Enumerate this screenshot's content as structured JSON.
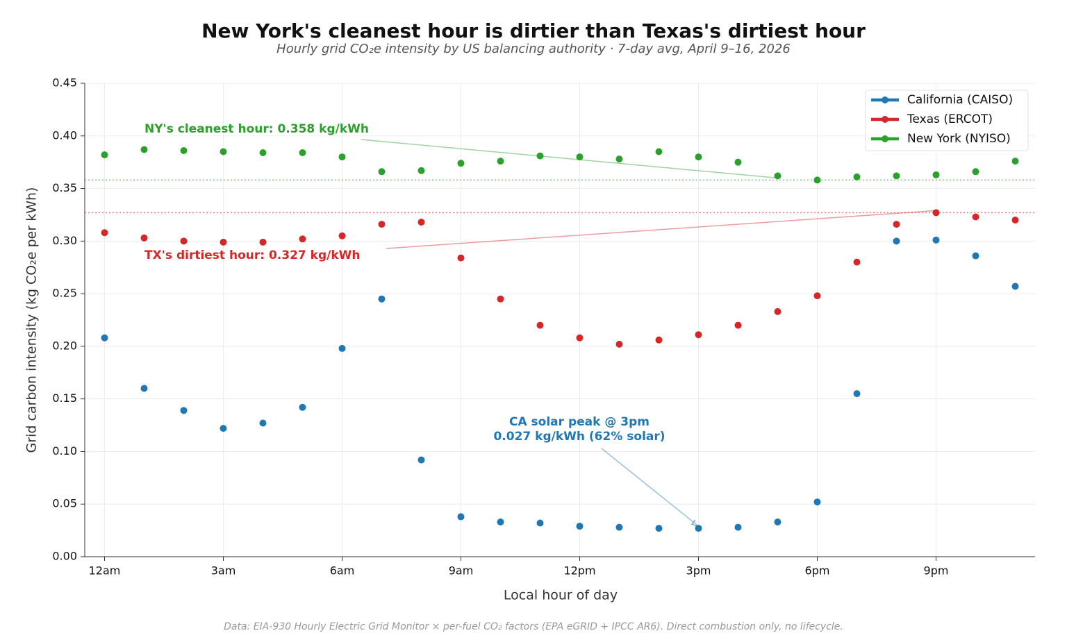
{
  "chart_data": {
    "type": "line",
    "title": "New York's cleanest hour is dirtier than Texas's dirtiest hour",
    "subtitle": "Hourly grid CO₂e intensity by US balancing authority · 7-day avg, April 9–16, 2026",
    "x_label": "Local hour of day",
    "y_label": "Grid carbon intensity (kg CO₂e per kWh)",
    "footnote": "Data: EIA-930 Hourly Electric Grid Monitor × per-fuel CO₂ factors (EPA eGRID + IPCC AR6). Direct combustion only, no lifecycle.",
    "x": [
      0,
      1,
      2,
      3,
      4,
      5,
      6,
      7,
      8,
      9,
      10,
      11,
      12,
      13,
      14,
      15,
      16,
      17,
      18,
      19,
      20,
      21,
      22,
      23
    ],
    "series": [
      {
        "name": "California (CAISO)",
        "color": "#1f77b4",
        "values": [
          0.208,
          0.16,
          0.139,
          0.122,
          0.127,
          0.142,
          0.198,
          0.245,
          0.092,
          0.038,
          0.033,
          0.032,
          0.029,
          0.028,
          0.027,
          0.027,
          0.028,
          0.033,
          0.052,
          0.155,
          0.3,
          0.301,
          0.286,
          0.257
        ]
      },
      {
        "name": "Texas (ERCOT)",
        "color": "#d62728",
        "values": [
          0.308,
          0.303,
          0.3,
          0.299,
          0.299,
          0.302,
          0.305,
          0.316,
          0.318,
          0.284,
          0.245,
          0.22,
          0.208,
          0.202,
          0.206,
          0.211,
          0.22,
          0.233,
          0.248,
          0.28,
          0.316,
          0.327,
          0.323,
          0.32
        ]
      },
      {
        "name": "New York (NYISO)",
        "color": "#2ca02c",
        "values": [
          0.382,
          0.387,
          0.386,
          0.385,
          0.384,
          0.384,
          0.38,
          0.366,
          0.367,
          0.374,
          0.376,
          0.381,
          0.38,
          0.378,
          0.385,
          0.38,
          0.375,
          0.362,
          0.358,
          0.361,
          0.362,
          0.363,
          0.366,
          0.376
        ]
      }
    ],
    "reference_lines": [
      {
        "value": 0.358,
        "color": "#2ca02c"
      },
      {
        "value": 0.327,
        "color": "#d62728"
      }
    ],
    "annotations": [
      {
        "lines": [
          "NY's cleanest hour: 0.358 kg/kWh"
        ],
        "color": "#2ca02c",
        "xy": [
          17,
          0.358
        ]
      },
      {
        "lines": [
          "TX's dirtiest hour: 0.327 kg/kWh"
        ],
        "color": "#d62728",
        "xy": [
          21,
          0.327
        ]
      },
      {
        "lines": [
          "CA solar peak @ 3pm",
          "0.027 kg/kWh (62% solar)"
        ],
        "color": "#1f77b4",
        "xy": [
          15,
          0.027
        ]
      }
    ],
    "xlim": [
      -0.5,
      23.5
    ],
    "ylim": [
      0,
      0.45
    ],
    "xticks": [
      {
        "value": 0,
        "label": "12am"
      },
      {
        "value": 3,
        "label": "3am"
      },
      {
        "value": 6,
        "label": "6am"
      },
      {
        "value": 9,
        "label": "9am"
      },
      {
        "value": 12,
        "label": "12pm"
      },
      {
        "value": 15,
        "label": "3pm"
      },
      {
        "value": 18,
        "label": "6pm"
      },
      {
        "value": 21,
        "label": "9pm"
      }
    ],
    "yticks": [
      {
        "value": 0,
        "label": "0.00"
      },
      {
        "value": 0.05,
        "label": "0.05"
      },
      {
        "value": 0.1,
        "label": "0.10"
      },
      {
        "value": 0.15,
        "label": "0.15"
      },
      {
        "value": 0.2,
        "label": "0.20"
      },
      {
        "value": 0.25,
        "label": "0.25"
      },
      {
        "value": 0.3,
        "label": "0.30"
      },
      {
        "value": 0.35,
        "label": "0.35"
      },
      {
        "value": 0.4,
        "label": "0.40"
      },
      {
        "value": 0.45,
        "label": "0.45"
      }
    ],
    "grid": true,
    "legend": "upper right"
  }
}
